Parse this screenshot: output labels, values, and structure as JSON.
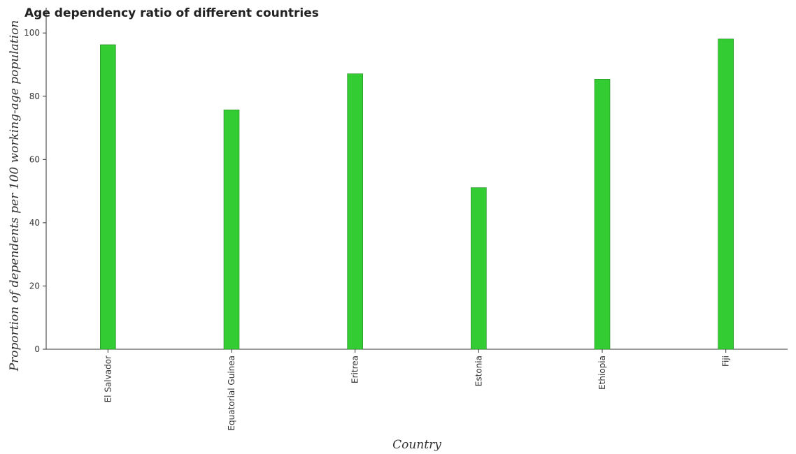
{
  "chart_data": {
    "type": "bar",
    "title": "Age dependency ratio of different countries",
    "xlabel": "Country",
    "ylabel": "Proportion of dependents per 100 working-age population",
    "categories": [
      "El Salvador",
      "Equatorial Guinea",
      "Eritrea",
      "Estonia",
      "Ethiopia",
      "Fiji"
    ],
    "values": [
      96.3,
      75.7,
      87.1,
      51.1,
      85.4,
      98.1
    ],
    "ylim": [
      0,
      108
    ],
    "yticks": [
      0,
      20,
      40,
      60,
      80,
      100
    ],
    "bar_color": "#33cc33",
    "grid": false
  }
}
